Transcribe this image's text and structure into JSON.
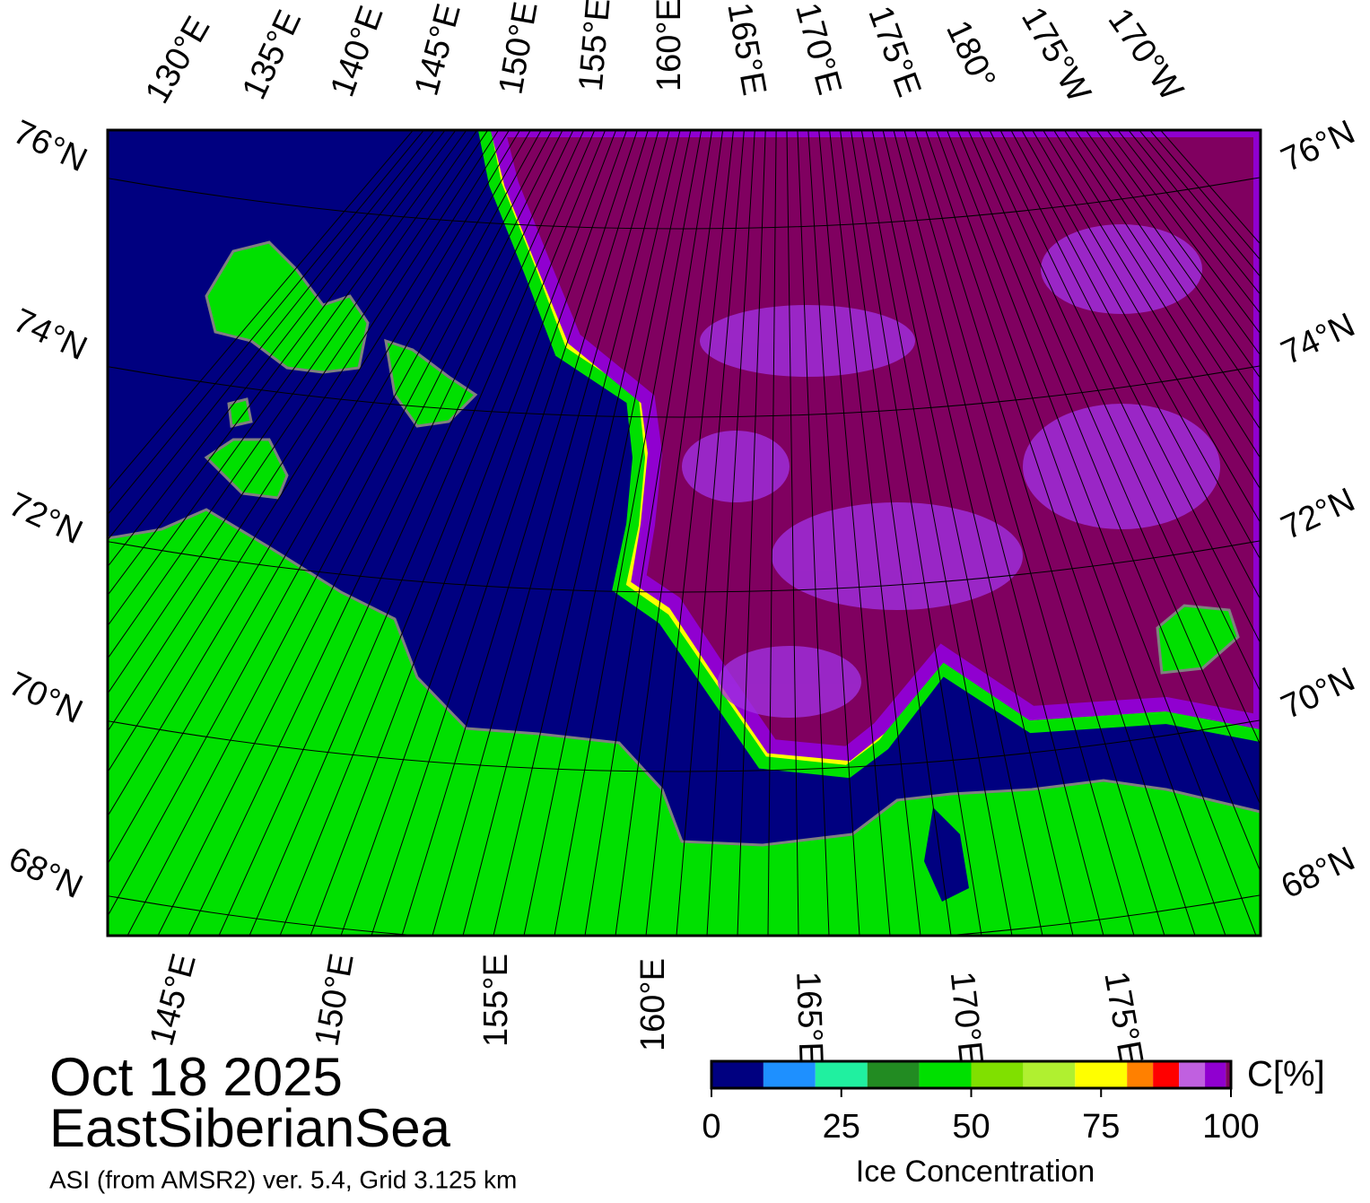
{
  "map": {
    "top_lon_labels": [
      "130°E",
      "135°E",
      "140°E",
      "145°E",
      "150°E",
      "155°E",
      "160°E",
      "165°E",
      "170°E",
      "175°E",
      "180°",
      "175°W",
      "170°W"
    ],
    "bottom_lon_labels": [
      "145°E",
      "150°E",
      "155°E",
      "160°E",
      "165°E",
      "170°E",
      "175°E"
    ],
    "left_lat_labels": [
      "76°N",
      "74°N",
      "72°N",
      "70°N",
      "68°N"
    ],
    "right_lat_labels": [
      "76°N",
      "74°N",
      "72°N",
      "70°N",
      "68°N"
    ],
    "date": "Oct 18 2025",
    "region": "EastSiberianSea",
    "source": "ASI (from AMSR2) ver. 5.4,  Grid 3.125 km"
  },
  "colorbar": {
    "bounds": [
      0,
      10,
      20,
      30,
      40,
      50,
      60,
      70,
      80,
      85,
      90,
      95,
      99,
      100
    ],
    "colors": [
      "#000080",
      "#1e90ff",
      "#20f0a0",
      "#228b22",
      "#00e000",
      "#80e000",
      "#b0f030",
      "#ffff00",
      "#ff8000",
      "#ff0000",
      "#c060e0",
      "#9000d0",
      "#800060"
    ],
    "ticks": [
      0,
      25,
      50,
      75,
      100
    ],
    "unit": "C[%]",
    "label": "Ice Concentration"
  }
}
